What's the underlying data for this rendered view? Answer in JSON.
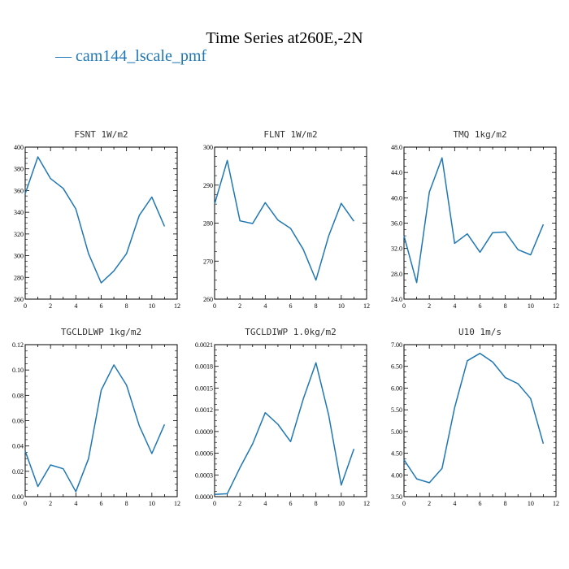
{
  "title": "Time Series at260E,-2N",
  "legend": {
    "label": "— cam144_lscale_pmf",
    "color": "#1f77b4"
  },
  "chart_data": [
    {
      "type": "line",
      "title": "FSNT   1W/m2",
      "x": [
        0,
        1,
        2,
        3,
        4,
        5,
        6,
        7,
        8,
        9,
        10,
        11
      ],
      "series": [
        {
          "name": "cam144_lscale_pmf",
          "values": [
            357,
            391,
            371,
            362,
            343,
            302,
            275,
            286,
            302,
            337,
            354,
            327
          ]
        }
      ],
      "xlim": [
        0,
        12
      ],
      "ylim": [
        260,
        400
      ],
      "xticks": [
        "0",
        "2",
        "4",
        "6",
        "8",
        "10",
        "12"
      ],
      "yticks": [
        "260",
        "280",
        "300",
        "320",
        "340",
        "360",
        "380",
        "400"
      ]
    },
    {
      "type": "line",
      "title": "FLNT   1W/m2",
      "x": [
        0,
        1,
        2,
        3,
        4,
        5,
        6,
        7,
        8,
        9,
        10,
        11
      ],
      "series": [
        {
          "name": "cam144_lscale_pmf",
          "values": [
            285,
            296.5,
            280.6,
            279.9,
            285.4,
            280.8,
            278.6,
            273.1,
            265,
            276.6,
            285.2,
            280.5
          ]
        }
      ],
      "xlim": [
        0,
        12
      ],
      "ylim": [
        260,
        300
      ],
      "xticks": [
        "0",
        "2",
        "4",
        "6",
        "8",
        "10",
        "12"
      ],
      "yticks": [
        "260",
        "270",
        "280",
        "290",
        "300"
      ]
    },
    {
      "type": "line",
      "title": "TMQ   1kg/m2",
      "x": [
        0,
        1,
        2,
        3,
        4,
        5,
        6,
        7,
        8,
        9,
        10,
        11
      ],
      "series": [
        {
          "name": "cam144_lscale_pmf",
          "values": [
            34,
            26.6,
            40.9,
            46.3,
            32.8,
            34.3,
            31.4,
            34.5,
            34.6,
            31.8,
            31,
            35.8
          ]
        }
      ],
      "xlim": [
        0,
        12
      ],
      "ylim": [
        24,
        48
      ],
      "xticks": [
        "0",
        "2",
        "4",
        "6",
        "8",
        "10",
        "12"
      ],
      "yticks": [
        "24.0",
        "28.0",
        "32.0",
        "36.0",
        "40.0",
        "44.0",
        "48.0"
      ]
    },
    {
      "type": "line",
      "title": "TGCLDLWP   1kg/m2",
      "x": [
        0,
        1,
        2,
        3,
        4,
        5,
        6,
        7,
        8,
        9,
        10,
        11
      ],
      "series": [
        {
          "name": "cam144_lscale_pmf",
          "values": [
            0.036,
            0.008,
            0.025,
            0.022,
            0.004,
            0.03,
            0.084,
            0.104,
            0.088,
            0.056,
            0.034,
            0.057
          ]
        }
      ],
      "xlim": [
        0,
        12
      ],
      "ylim": [
        0,
        0.12
      ],
      "xticks": [
        "0",
        "2",
        "4",
        "6",
        "8",
        "10",
        "12"
      ],
      "yticks": [
        "0.00",
        "0.02",
        "0.04",
        "0.06",
        "0.08",
        "0.10",
        "0.12"
      ]
    },
    {
      "type": "line",
      "title": "TGCLDIWP   1.0kg/m2",
      "x": [
        0,
        1,
        2,
        3,
        4,
        5,
        6,
        7,
        8,
        9,
        10,
        11
      ],
      "series": [
        {
          "name": "cam144_lscale_pmf",
          "values": [
            3e-05,
            4e-05,
            0.0004,
            0.00073,
            0.00116,
            0.001,
            0.00076,
            0.00135,
            0.00185,
            0.00113,
            0.00016,
            0.00066
          ]
        }
      ],
      "xlim": [
        0,
        12
      ],
      "ylim": [
        0,
        0.0021
      ],
      "xticks": [
        "0",
        "2",
        "4",
        "6",
        "8",
        "10",
        "12"
      ],
      "yticks": [
        "0.0000",
        "0.0003",
        "0.0006",
        "0.0009",
        "0.0012",
        "0.0015",
        "0.0018",
        "0.0021"
      ]
    },
    {
      "type": "line",
      "title": "U10   1m/s",
      "x": [
        0,
        1,
        2,
        3,
        4,
        5,
        6,
        7,
        8,
        9,
        10,
        11
      ],
      "series": [
        {
          "name": "cam144_lscale_pmf",
          "values": [
            4.35,
            3.91,
            3.82,
            4.15,
            5.55,
            6.63,
            6.8,
            6.6,
            6.24,
            6.1,
            5.76,
            4.72
          ]
        }
      ],
      "xlim": [
        0,
        12
      ],
      "ylim": [
        3.5,
        7
      ],
      "xticks": [
        "0",
        "2",
        "4",
        "6",
        "8",
        "10",
        "12"
      ],
      "yticks": [
        "3.50",
        "4.00",
        "4.50",
        "5.00",
        "5.50",
        "6.00",
        "6.50",
        "7.00"
      ]
    }
  ]
}
